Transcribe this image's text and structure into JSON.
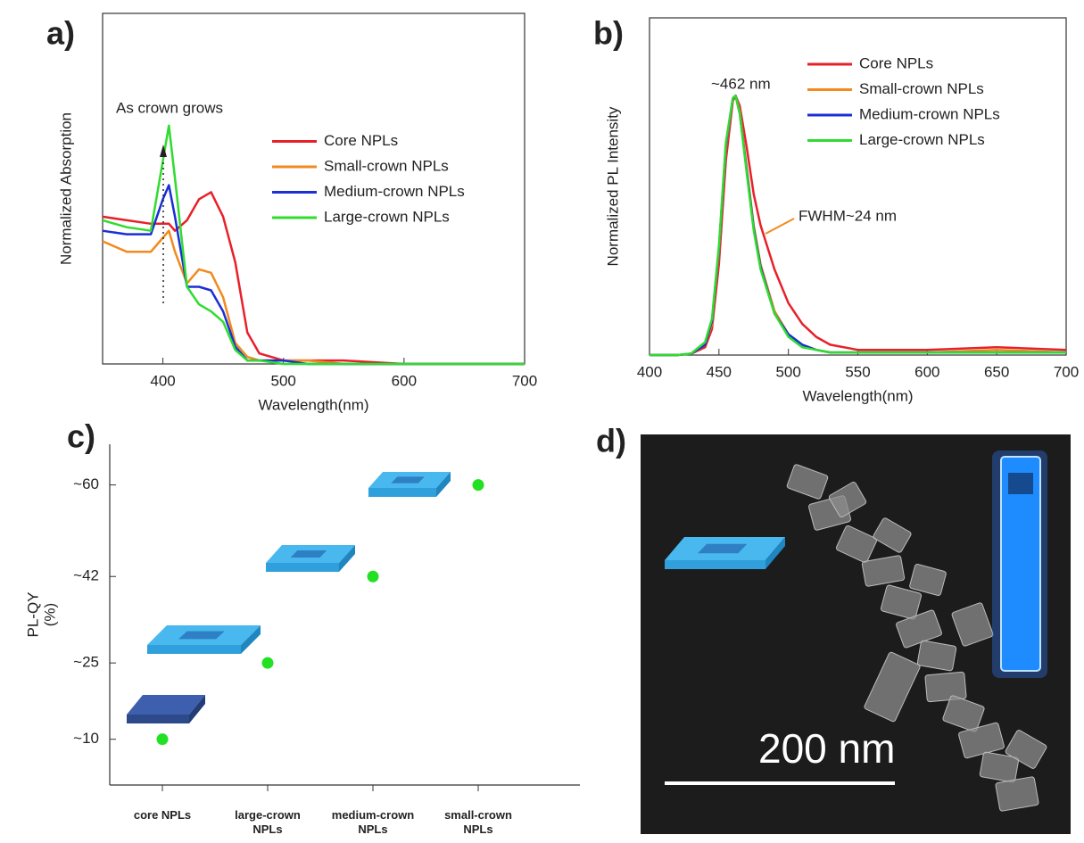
{
  "chart_data": [
    {
      "type": "line",
      "label": "a)",
      "xlabel": "Wavelength(nm)",
      "ylabel": "Normalized Absorption",
      "x": [
        350,
        370,
        390,
        400,
        405,
        410,
        420,
        430,
        440,
        450,
        460,
        470,
        480,
        500,
        520,
        550,
        600,
        650,
        700
      ],
      "xlim": [
        350,
        700
      ],
      "xticks": [
        400,
        500,
        600,
        700
      ],
      "ylim": [
        0,
        1
      ],
      "legend": "center right",
      "series": [
        {
          "name": "Core NPLs",
          "color": "#e8202a",
          "values": [
            0.42,
            0.41,
            0.4,
            0.4,
            0.4,
            0.38,
            0.41,
            0.47,
            0.49,
            0.42,
            0.29,
            0.09,
            0.03,
            0.01,
            0.01,
            0.01,
            0.0,
            0.0,
            0.0
          ]
        },
        {
          "name": "Small-crown NPLs",
          "color": "#f28a1e",
          "values": [
            0.35,
            0.32,
            0.32,
            0.36,
            0.38,
            0.32,
            0.23,
            0.27,
            0.26,
            0.19,
            0.06,
            0.02,
            0.01,
            0.01,
            0.01,
            0.0,
            0.0,
            0.0,
            0.0
          ]
        },
        {
          "name": "Medium-crown NPLs",
          "color": "#1a2fd6",
          "values": [
            0.38,
            0.37,
            0.37,
            0.47,
            0.51,
            0.42,
            0.22,
            0.22,
            0.21,
            0.15,
            0.05,
            0.01,
            0.01,
            0.01,
            0.0,
            0.0,
            0.0,
            0.0,
            0.0
          ]
        },
        {
          "name": "Large-crown NPLs",
          "color": "#2fdc2f",
          "values": [
            0.41,
            0.39,
            0.38,
            0.58,
            0.68,
            0.53,
            0.22,
            0.17,
            0.15,
            0.12,
            0.04,
            0.01,
            0.01,
            0.0,
            0.0,
            0.0,
            0.0,
            0.0,
            0.0
          ]
        }
      ],
      "annotations": [
        "As crown  grows"
      ]
    },
    {
      "type": "line",
      "label": "b)",
      "xlabel": "Wavelength(nm)",
      "ylabel": "Normalized PL Intensity",
      "x": [
        400,
        420,
        430,
        440,
        445,
        450,
        455,
        460,
        462,
        465,
        470,
        475,
        480,
        490,
        500,
        510,
        520,
        530,
        550,
        600,
        650,
        700
      ],
      "xlim": [
        400,
        700
      ],
      "xticks": [
        400,
        450,
        500,
        550,
        600,
        650,
        700
      ],
      "ylim": [
        0,
        1.3
      ],
      "legend": "upper right",
      "series": [
        {
          "name": "Core NPLs",
          "color": "#e8202a",
          "values": [
            0,
            0,
            0.005,
            0.03,
            0.1,
            0.35,
            0.75,
            0.98,
            1.0,
            0.96,
            0.8,
            0.62,
            0.5,
            0.33,
            0.2,
            0.12,
            0.07,
            0.04,
            0.02,
            0.02,
            0.03,
            0.02
          ]
        },
        {
          "name": "Small-crown NPLs",
          "color": "#f28a1e",
          "values": [
            0,
            0,
            0.005,
            0.04,
            0.12,
            0.4,
            0.8,
            0.99,
            1.0,
            0.94,
            0.72,
            0.5,
            0.35,
            0.17,
            0.08,
            0.04,
            0.02,
            0.01,
            0.01,
            0.01,
            0.02,
            0.01
          ]
        },
        {
          "name": "Medium-crown NPLs",
          "color": "#1a2fd6",
          "values": [
            0,
            0,
            0.005,
            0.04,
            0.13,
            0.41,
            0.81,
            0.99,
            1.0,
            0.93,
            0.71,
            0.49,
            0.34,
            0.16,
            0.08,
            0.04,
            0.02,
            0.01,
            0.01,
            0.01,
            0.01,
            0.01
          ]
        },
        {
          "name": "Large-crown NPLs",
          "color": "#2fdc2f",
          "values": [
            0,
            0,
            0.006,
            0.05,
            0.14,
            0.42,
            0.82,
            0.99,
            1.0,
            0.93,
            0.7,
            0.48,
            0.33,
            0.16,
            0.07,
            0.03,
            0.02,
            0.01,
            0.01,
            0.01,
            0.01,
            0.01
          ]
        }
      ],
      "annotations": [
        "~462 nm",
        "FWHM~24 nm"
      ]
    },
    {
      "type": "scatter",
      "label": "c)",
      "ylabel": "PL-QY",
      "yunit": "(%)",
      "categories": [
        "core NPLs",
        "large-crown NPLs",
        "medium-crown NPLs",
        "small-crown NPLs"
      ],
      "values": [
        10,
        25,
        42,
        60
      ],
      "color": "#22e022",
      "ylim": [
        1,
        68
      ],
      "yticks": [
        {
          "value": 10,
          "label": "~10"
        },
        {
          "value": 25,
          "label": "~25"
        },
        {
          "value": 42,
          "label": "~42"
        },
        {
          "value": 60,
          "label": "~60"
        }
      ]
    }
  ],
  "image": {
    "label": "d)",
    "scale_bar": "200 nm"
  }
}
